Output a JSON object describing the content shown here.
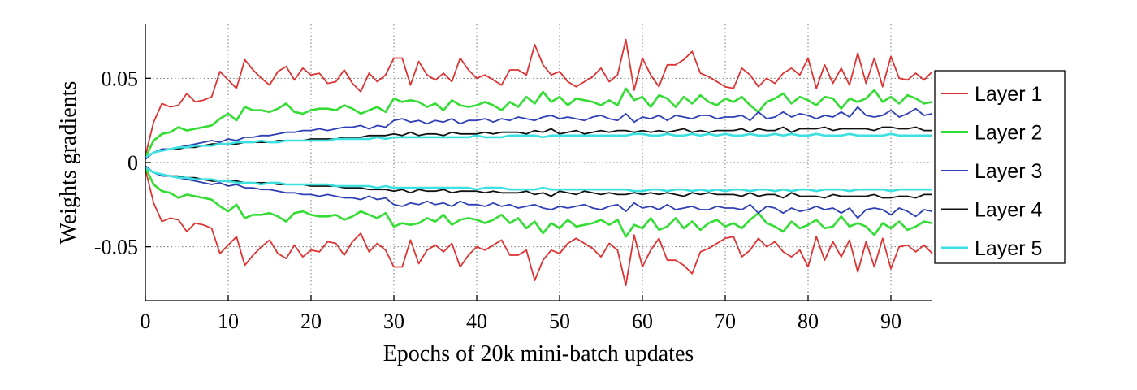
{
  "chart_data": {
    "type": "line",
    "title": "",
    "xlabel": "Epochs of 20k mini-batch updates",
    "ylabel": "Weights gradients",
    "xlim": [
      0,
      95
    ],
    "ylim": [
      -0.082,
      0.082
    ],
    "xticks": [
      0,
      10,
      20,
      30,
      40,
      50,
      60,
      70,
      80,
      90
    ],
    "xtick_labels": [
      "0",
      "10",
      "20",
      "30",
      "40",
      "50",
      "60",
      "70",
      "80",
      "90"
    ],
    "yticks": [
      -0.05,
      0,
      0.05
    ],
    "ytick_labels": [
      "-0.05",
      "0",
      "0.05"
    ],
    "grid": true,
    "grid_style": "dotted",
    "legend_position": "right, outside plot",
    "note": "Each layer is drawn as a symmetric pair of curves: the upper values and their negatives.",
    "x": [
      0,
      1,
      2,
      3,
      4,
      5,
      6,
      7,
      8,
      9,
      10,
      11,
      12,
      13,
      14,
      15,
      16,
      17,
      18,
      19,
      20,
      21,
      22,
      23,
      24,
      25,
      26,
      27,
      28,
      29,
      30,
      31,
      32,
      33,
      34,
      35,
      36,
      37,
      38,
      39,
      40,
      41,
      42,
      43,
      44,
      45,
      46,
      47,
      48,
      49,
      50,
      51,
      52,
      53,
      54,
      55,
      56,
      57,
      58,
      59,
      60,
      61,
      62,
      63,
      64,
      65,
      66,
      67,
      68,
      69,
      70,
      71,
      72,
      73,
      74,
      75,
      76,
      77,
      78,
      79,
      80,
      81,
      82,
      83,
      84,
      85,
      86,
      87,
      88,
      89,
      90,
      91,
      92,
      93,
      94,
      95
    ],
    "series": [
      {
        "name": "Layer 1",
        "color": "#dd3333",
        "values": [
          0.004,
          0.024,
          0.035,
          0.033,
          0.034,
          0.041,
          0.036,
          0.037,
          0.039,
          0.054,
          0.049,
          0.044,
          0.061,
          0.055,
          0.05,
          0.046,
          0.054,
          0.057,
          0.049,
          0.056,
          0.052,
          0.053,
          0.047,
          0.048,
          0.055,
          0.047,
          0.042,
          0.053,
          0.048,
          0.052,
          0.062,
          0.062,
          0.046,
          0.06,
          0.052,
          0.049,
          0.053,
          0.048,
          0.062,
          0.055,
          0.05,
          0.052,
          0.049,
          0.046,
          0.055,
          0.055,
          0.052,
          0.07,
          0.058,
          0.052,
          0.054,
          0.048,
          0.045,
          0.048,
          0.051,
          0.056,
          0.048,
          0.052,
          0.073,
          0.043,
          0.062,
          0.052,
          0.045,
          0.058,
          0.058,
          0.061,
          0.066,
          0.053,
          0.051,
          0.048,
          0.045,
          0.044,
          0.056,
          0.052,
          0.045,
          0.05,
          0.047,
          0.053,
          0.056,
          0.052,
          0.062,
          0.044,
          0.058,
          0.047,
          0.056,
          0.046,
          0.065,
          0.047,
          0.062,
          0.045,
          0.063,
          0.05,
          0.049,
          0.053,
          0.049,
          0.054
        ]
      },
      {
        "name": "Layer 2",
        "color": "#33dd33",
        "values": [
          0.003,
          0.013,
          0.017,
          0.018,
          0.021,
          0.019,
          0.02,
          0.021,
          0.022,
          0.026,
          0.029,
          0.025,
          0.033,
          0.031,
          0.031,
          0.03,
          0.032,
          0.035,
          0.03,
          0.029,
          0.031,
          0.032,
          0.032,
          0.031,
          0.034,
          0.032,
          0.029,
          0.031,
          0.033,
          0.03,
          0.038,
          0.036,
          0.037,
          0.036,
          0.033,
          0.035,
          0.031,
          0.037,
          0.034,
          0.033,
          0.034,
          0.036,
          0.034,
          0.031,
          0.036,
          0.033,
          0.039,
          0.035,
          0.042,
          0.036,
          0.039,
          0.034,
          0.038,
          0.037,
          0.036,
          0.034,
          0.037,
          0.034,
          0.044,
          0.037,
          0.039,
          0.033,
          0.04,
          0.038,
          0.033,
          0.039,
          0.035,
          0.04,
          0.036,
          0.034,
          0.038,
          0.036,
          0.039,
          0.034,
          0.03,
          0.036,
          0.038,
          0.041,
          0.035,
          0.039,
          0.037,
          0.034,
          0.039,
          0.038,
          0.032,
          0.038,
          0.036,
          0.038,
          0.043,
          0.036,
          0.039,
          0.035,
          0.04,
          0.038,
          0.035,
          0.036
        ]
      },
      {
        "name": "Layer 3",
        "color": "#2f3fb5",
        "values": [
          0.002,
          0.006,
          0.008,
          0.008,
          0.009,
          0.01,
          0.011,
          0.012,
          0.013,
          0.012,
          0.014,
          0.013,
          0.015,
          0.015,
          0.016,
          0.016,
          0.017,
          0.018,
          0.018,
          0.019,
          0.019,
          0.02,
          0.019,
          0.02,
          0.021,
          0.021,
          0.022,
          0.02,
          0.022,
          0.021,
          0.025,
          0.026,
          0.024,
          0.025,
          0.023,
          0.025,
          0.024,
          0.026,
          0.023,
          0.025,
          0.025,
          0.026,
          0.024,
          0.026,
          0.025,
          0.027,
          0.026,
          0.025,
          0.027,
          0.028,
          0.026,
          0.027,
          0.026,
          0.025,
          0.027,
          0.028,
          0.026,
          0.025,
          0.029,
          0.024,
          0.027,
          0.026,
          0.028,
          0.025,
          0.028,
          0.027,
          0.026,
          0.028,
          0.028,
          0.026,
          0.027,
          0.027,
          0.028,
          0.025,
          0.03,
          0.026,
          0.027,
          0.03,
          0.027,
          0.029,
          0.028,
          0.026,
          0.028,
          0.027,
          0.03,
          0.027,
          0.033,
          0.028,
          0.027,
          0.028,
          0.031,
          0.027,
          0.029,
          0.032,
          0.028,
          0.029
        ]
      },
      {
        "name": "Layer 4",
        "color": "#111111",
        "values": [
          0.003,
          0.006,
          0.007,
          0.008,
          0.008,
          0.009,
          0.009,
          0.01,
          0.011,
          0.011,
          0.011,
          0.011,
          0.012,
          0.012,
          0.012,
          0.012,
          0.013,
          0.013,
          0.013,
          0.013,
          0.014,
          0.014,
          0.014,
          0.014,
          0.015,
          0.015,
          0.015,
          0.016,
          0.016,
          0.016,
          0.017,
          0.016,
          0.018,
          0.016,
          0.017,
          0.017,
          0.016,
          0.018,
          0.017,
          0.017,
          0.017,
          0.018,
          0.017,
          0.018,
          0.018,
          0.018,
          0.017,
          0.019,
          0.018,
          0.02,
          0.017,
          0.018,
          0.019,
          0.017,
          0.018,
          0.019,
          0.018,
          0.019,
          0.019,
          0.018,
          0.019,
          0.018,
          0.019,
          0.018,
          0.019,
          0.02,
          0.018,
          0.019,
          0.018,
          0.019,
          0.019,
          0.019,
          0.02,
          0.018,
          0.02,
          0.019,
          0.019,
          0.021,
          0.018,
          0.02,
          0.02,
          0.02,
          0.021,
          0.019,
          0.02,
          0.02,
          0.02,
          0.02,
          0.019,
          0.021,
          0.021,
          0.02,
          0.02,
          0.021,
          0.019,
          0.019
        ]
      },
      {
        "name": "Layer 5",
        "color": "#3de0e0",
        "values": [
          0.003,
          0.006,
          0.007,
          0.008,
          0.009,
          0.009,
          0.01,
          0.01,
          0.01,
          0.011,
          0.011,
          0.012,
          0.012,
          0.012,
          0.013,
          0.012,
          0.012,
          0.013,
          0.013,
          0.013,
          0.013,
          0.013,
          0.013,
          0.014,
          0.014,
          0.014,
          0.014,
          0.014,
          0.015,
          0.014,
          0.015,
          0.015,
          0.015,
          0.015,
          0.015,
          0.015,
          0.015,
          0.015,
          0.015,
          0.015,
          0.016,
          0.015,
          0.015,
          0.015,
          0.016,
          0.016,
          0.016,
          0.016,
          0.015,
          0.016,
          0.016,
          0.016,
          0.016,
          0.016,
          0.016,
          0.016,
          0.016,
          0.016,
          0.016,
          0.017,
          0.017,
          0.016,
          0.016,
          0.017,
          0.016,
          0.016,
          0.017,
          0.016,
          0.017,
          0.016,
          0.017,
          0.016,
          0.016,
          0.017,
          0.016,
          0.016,
          0.017,
          0.016,
          0.017,
          0.016,
          0.016,
          0.017,
          0.016,
          0.016,
          0.016,
          0.017,
          0.016,
          0.016,
          0.016,
          0.016,
          0.017,
          0.016,
          0.016,
          0.016,
          0.016,
          0.016
        ]
      }
    ]
  }
}
